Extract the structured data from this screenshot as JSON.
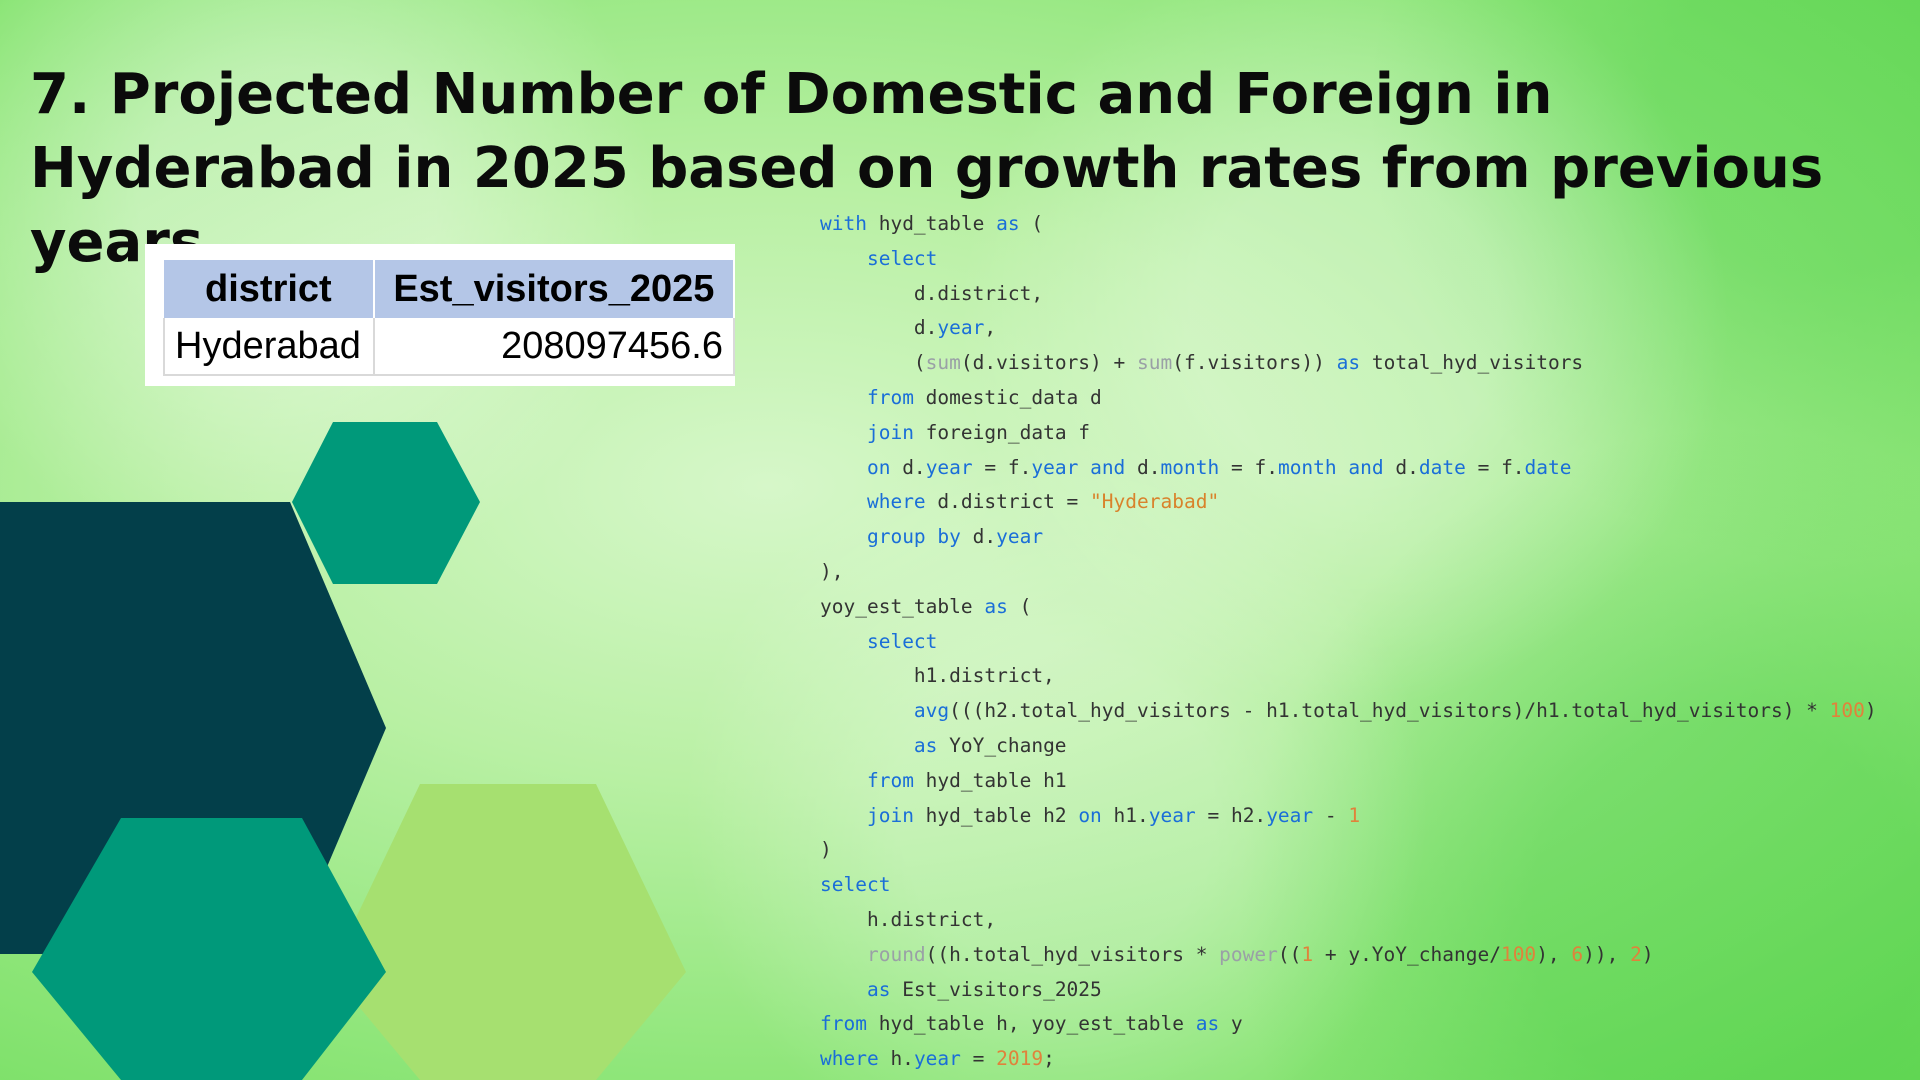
{
  "slide": {
    "title": "7. Projected Number of Domestic and Foreign in Hyderabad in 2025 based on growth rates from previous years."
  },
  "result_table": {
    "columns": [
      "district",
      "Est_visitors_2025"
    ],
    "rows": [
      [
        "Hyderabad",
        "208097456.6"
      ]
    ]
  },
  "code_lines": [
    [
      [
        "kw",
        "with"
      ],
      [
        "t",
        " hyd_table "
      ],
      [
        "kw",
        "as"
      ],
      [
        "t",
        " ("
      ]
    ],
    [
      [
        "t",
        "    "
      ],
      [
        "kw",
        "select"
      ]
    ],
    [
      [
        "t",
        "        d.district,"
      ]
    ],
    [
      [
        "t",
        "        d."
      ],
      [
        "kw",
        "year"
      ],
      [
        "t",
        ","
      ]
    ],
    [
      [
        "t",
        "        ("
      ],
      [
        "fn",
        "sum"
      ],
      [
        "t",
        "(d.visitors) + "
      ],
      [
        "fn",
        "sum"
      ],
      [
        "t",
        "(f.visitors)) "
      ],
      [
        "kw",
        "as"
      ],
      [
        "t",
        " total_hyd_visitors"
      ]
    ],
    [
      [
        "t",
        "    "
      ],
      [
        "kw",
        "from"
      ],
      [
        "t",
        " domestic_data d"
      ]
    ],
    [
      [
        "t",
        "    "
      ],
      [
        "kw",
        "join"
      ],
      [
        "t",
        " foreign_data f"
      ]
    ],
    [
      [
        "t",
        "    "
      ],
      [
        "kw",
        "on"
      ],
      [
        "t",
        " d."
      ],
      [
        "kw",
        "year"
      ],
      [
        "t",
        " = f."
      ],
      [
        "kw",
        "year"
      ],
      [
        "t",
        " "
      ],
      [
        "kw",
        "and"
      ],
      [
        "t",
        " d."
      ],
      [
        "kw",
        "month"
      ],
      [
        "t",
        " = f."
      ],
      [
        "kw",
        "month"
      ],
      [
        "t",
        " "
      ],
      [
        "kw",
        "and"
      ],
      [
        "t",
        " d."
      ],
      [
        "kw",
        "date"
      ],
      [
        "t",
        " = f."
      ],
      [
        "kw",
        "date"
      ]
    ],
    [
      [
        "t",
        "    "
      ],
      [
        "kw",
        "where"
      ],
      [
        "t",
        " d.district = "
      ],
      [
        "str",
        "\"Hyderabad\""
      ]
    ],
    [
      [
        "t",
        "    "
      ],
      [
        "kw",
        "group by"
      ],
      [
        "t",
        " d."
      ],
      [
        "kw",
        "year"
      ]
    ],
    [
      [
        "t",
        "),"
      ]
    ],
    [
      [
        "t",
        "yoy_est_table "
      ],
      [
        "kw",
        "as"
      ],
      [
        "t",
        " ("
      ]
    ],
    [
      [
        "t",
        "    "
      ],
      [
        "kw",
        "select"
      ]
    ],
    [
      [
        "t",
        "        h1.district,"
      ]
    ],
    [
      [
        "t",
        "        "
      ],
      [
        "kw",
        "avg"
      ],
      [
        "t",
        "(((h2.total_hyd_visitors - h1.total_hyd_visitors)/h1.total_hyd_visitors) * "
      ],
      [
        "nm",
        "100"
      ],
      [
        "t",
        ")"
      ]
    ],
    [
      [
        "t",
        "        "
      ],
      [
        "kw",
        "as"
      ],
      [
        "t",
        " YoY_change"
      ]
    ],
    [
      [
        "t",
        "    "
      ],
      [
        "kw",
        "from"
      ],
      [
        "t",
        " hyd_table h1"
      ]
    ],
    [
      [
        "t",
        "    "
      ],
      [
        "kw",
        "join"
      ],
      [
        "t",
        " hyd_table h2 "
      ],
      [
        "kw",
        "on"
      ],
      [
        "t",
        " h1."
      ],
      [
        "kw",
        "year"
      ],
      [
        "t",
        " = h2."
      ],
      [
        "kw",
        "year"
      ],
      [
        "t",
        " - "
      ],
      [
        "nm",
        "1"
      ]
    ],
    [
      [
        "t",
        ")"
      ]
    ],
    [
      [
        "kw",
        "select"
      ]
    ],
    [
      [
        "t",
        "    h.district,"
      ]
    ],
    [
      [
        "t",
        "    "
      ],
      [
        "fn",
        "round"
      ],
      [
        "t",
        "((h.total_hyd_visitors * "
      ],
      [
        "fn",
        "power"
      ],
      [
        "t",
        "(("
      ],
      [
        "nm",
        "1"
      ],
      [
        "t",
        " + y.YoY_change/"
      ],
      [
        "nm",
        "100"
      ],
      [
        "t",
        "), "
      ],
      [
        "nm",
        "6"
      ],
      [
        "t",
        ")), "
      ],
      [
        "nm",
        "2"
      ],
      [
        "t",
        ")"
      ]
    ],
    [
      [
        "t",
        "    "
      ],
      [
        "kw",
        "as"
      ],
      [
        "t",
        " Est_visitors_2025"
      ]
    ],
    [
      [
        "kw",
        "from"
      ],
      [
        "t",
        " hyd_table h, yoy_est_table "
      ],
      [
        "kw",
        "as"
      ],
      [
        "t",
        " y"
      ]
    ],
    [
      [
        "kw",
        "where"
      ],
      [
        "t",
        " h."
      ],
      [
        "kw",
        "year"
      ],
      [
        "t",
        " = "
      ],
      [
        "nm",
        "2019"
      ],
      [
        "t",
        ";"
      ]
    ]
  ],
  "colors": {
    "hex_dark_teal": "#033f4a",
    "hex_teal": "#00997a",
    "hex_light_green": "#a6e070",
    "table_header_bg": "#b4c6e7"
  }
}
